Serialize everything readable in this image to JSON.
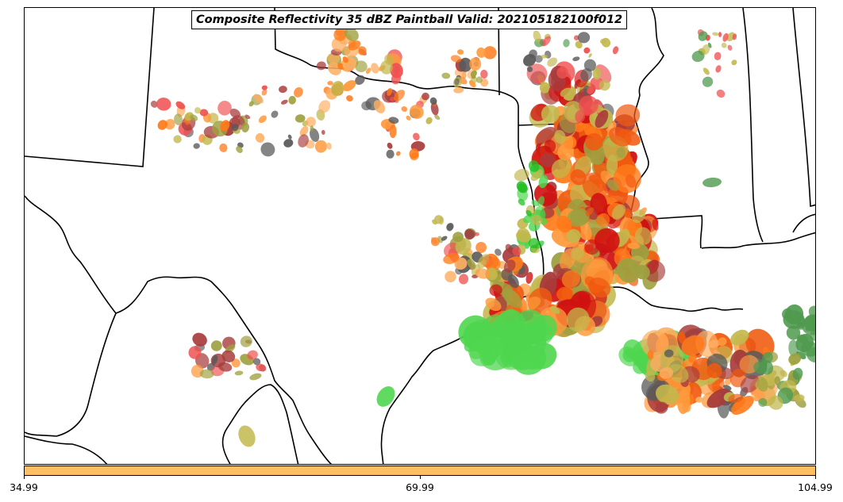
{
  "title": "Composite Reflectivity 35 dBZ Paintball Valid: 202105182100f012",
  "colorbar": {
    "color": "#fdbf63",
    "ticks": [
      "34.99",
      "69.99",
      "104.99"
    ]
  },
  "palette": {
    "red": "#f05050",
    "dark_red": "#a83c3c",
    "orange": "#ff7a1a",
    "light_orange": "#ff9a3c",
    "peach": "#fdae61",
    "dark_orange": "#f05a10",
    "olive": "#9ea040",
    "khaki": "#c2b84e",
    "green": "#4fd64f",
    "bright_green": "#22c022",
    "dark_green": "#4f9a4f",
    "gray": "#5a5a5a",
    "crimson": "#d01010"
  }
}
